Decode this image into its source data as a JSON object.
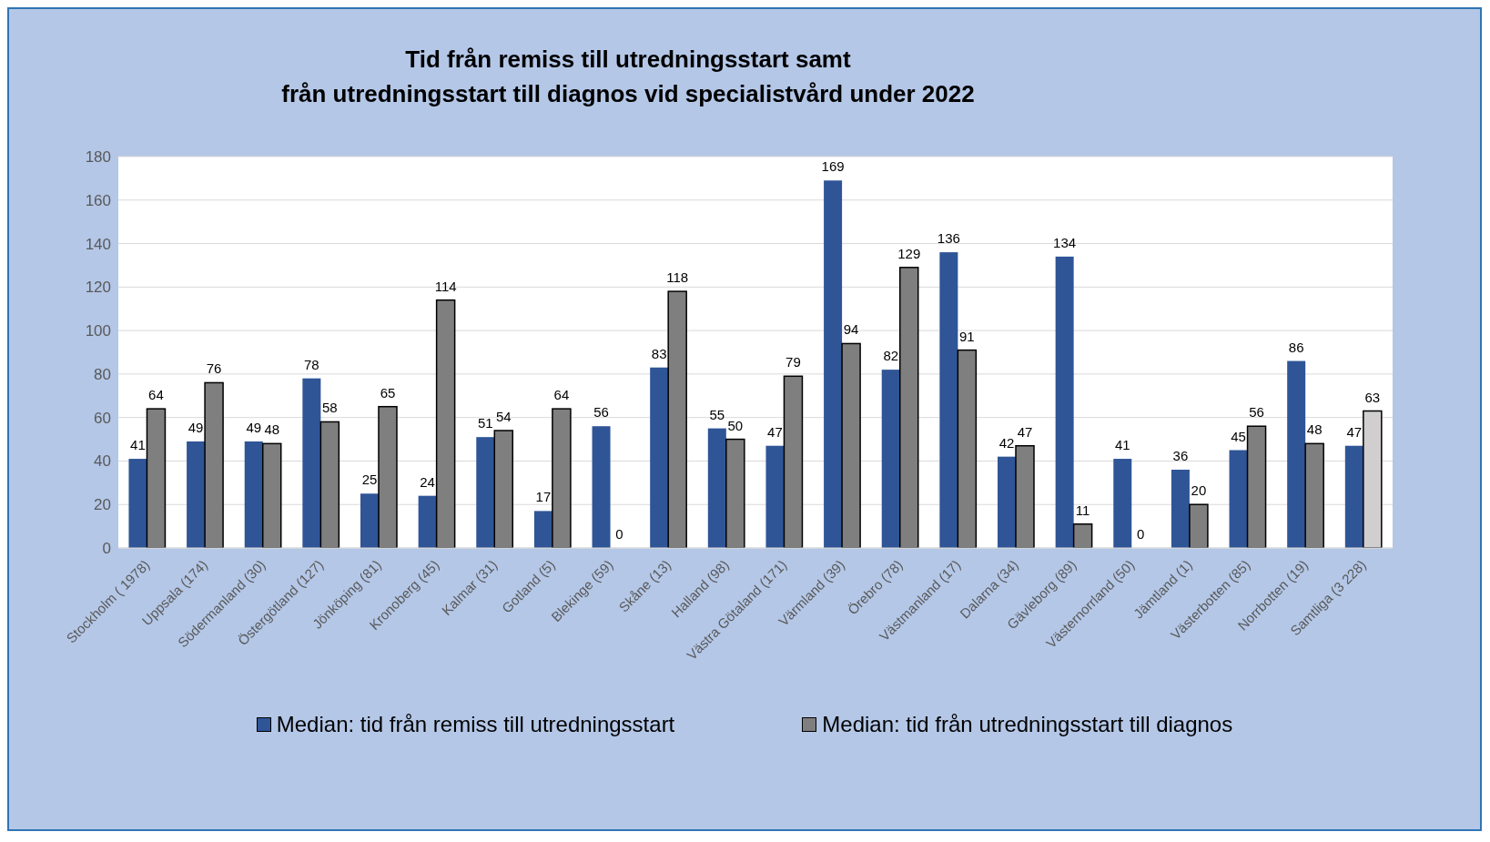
{
  "chart_data": {
    "type": "bar",
    "title": "Tid från remiss till utredningsstart samt\nfrån utredningsstart till diagnos vid specialistvård under 2022",
    "categories": [
      "Stockholm ( 1978)",
      "Uppsala (174)",
      "Södermanland (30)",
      "Östergötland (127)",
      "Jönköping (81)",
      "Kronoberg (45)",
      "Kalmar (31)",
      "Gotland (5)",
      "Blekinge (59)",
      "Skåne (13)",
      "Halland (98)",
      "Västra Götaland (171)",
      "Värmland (39)",
      "Örebro (78)",
      "Västmanland (17)",
      "Dalarna (34)",
      "Gävleborg (89)",
      "Västernorrland (50)",
      "Jämtland (1)",
      "Västerbotten (85)",
      "Norrbotten (19)",
      "Samtliga (3 228)"
    ],
    "series": [
      {
        "name": "Median: tid från remiss till utredningsstart",
        "color": "#2f5597",
        "values": [
          41,
          49,
          49,
          78,
          25,
          24,
          51,
          17,
          56,
          83,
          55,
          47,
          169,
          82,
          136,
          42,
          134,
          41,
          36,
          45,
          86,
          47
        ]
      },
      {
        "name": "Median: tid från utredningsstart till diagnos",
        "color": "#7f7f7f",
        "colors": [
          "#7f7f7f",
          "#7f7f7f",
          "#7f7f7f",
          "#7f7f7f",
          "#7f7f7f",
          "#7f7f7f",
          "#7f7f7f",
          "#7f7f7f",
          "#7f7f7f",
          "#7f7f7f",
          "#7f7f7f",
          "#7f7f7f",
          "#7f7f7f",
          "#7f7f7f",
          "#7f7f7f",
          "#7f7f7f",
          "#7f7f7f",
          "#7f7f7f",
          "#7f7f7f",
          "#7f7f7f",
          "#7f7f7f",
          "#d0cece"
        ],
        "values": [
          64,
          76,
          48,
          58,
          65,
          114,
          54,
          64,
          0,
          118,
          50,
          79,
          94,
          129,
          91,
          47,
          11,
          0,
          20,
          56,
          48,
          63
        ]
      }
    ],
    "ylim": [
      0,
      180
    ],
    "yticks": [
      0,
      20,
      40,
      60,
      80,
      100,
      120,
      140,
      160,
      180
    ],
    "grid": "y",
    "legend": "bottom",
    "data_labels": true
  }
}
